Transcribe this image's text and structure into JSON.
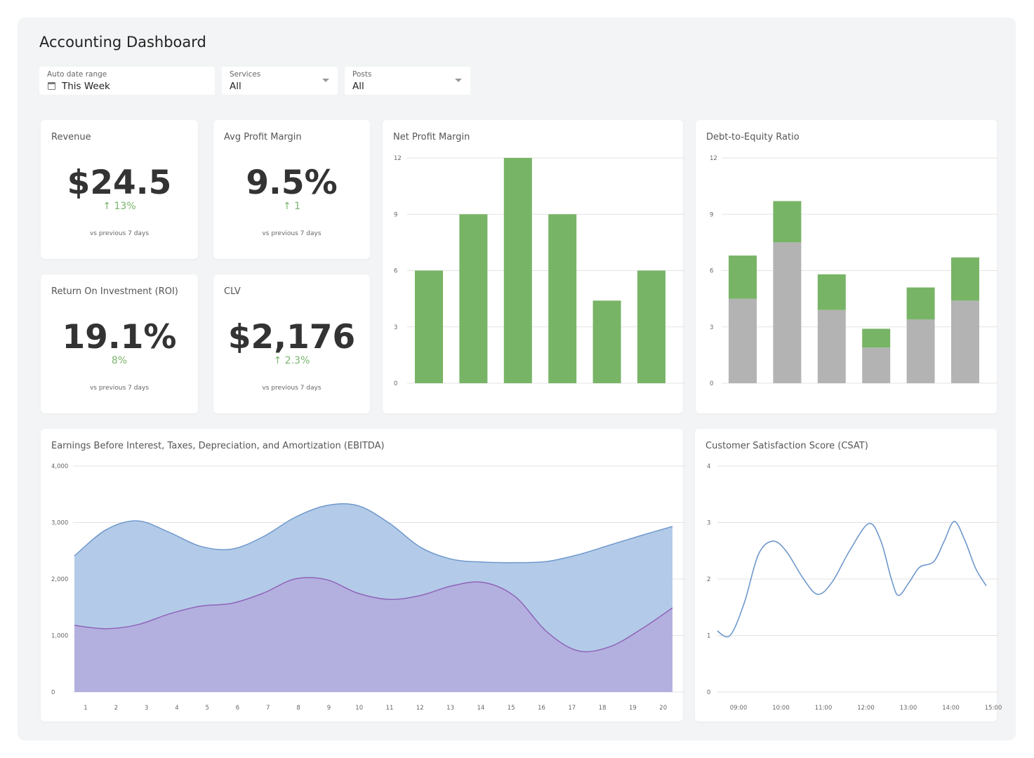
{
  "header": {
    "title": "Accounting Dashboard"
  },
  "filters": [
    {
      "label": "Auto date range",
      "value": "This Week",
      "icon": "calendar-icon"
    },
    {
      "label": "Services",
      "value": "All"
    },
    {
      "label": "Posts",
      "value": "All"
    }
  ],
  "kpis": [
    {
      "title": "Revenue",
      "value": "$24.5",
      "delta": "↑ 13%",
      "sub": "vs previous 7 days"
    },
    {
      "title": "Avg Profit Margin",
      "value": "9.5%",
      "delta": "↑ 1",
      "sub": "vs previous 7 days"
    },
    {
      "title": "Return On Investment (ROI)",
      "value": "19.1%",
      "delta": "8%",
      "sub": "vs previous 7 days"
    },
    {
      "title": "CLV",
      "value": "$2,176",
      "delta": "↑ 2.3%",
      "sub": "vs previous 7 days"
    }
  ],
  "colors": {
    "green": "#78b466",
    "gray": "#b3b3b3",
    "blue_fill": "#b3cbe8",
    "blue_line": "#6f98cc",
    "purple_fill": "#b3acde",
    "purple_line": "#9064b8",
    "csat_line": "#6f98cc"
  },
  "chart_data": [
    {
      "title": "Net Profit Margin",
      "type": "bar",
      "ylim": [
        0,
        12
      ],
      "yticks": [
        "0",
        "3",
        "6",
        "9",
        "12"
      ],
      "values": [
        6,
        9,
        12,
        9,
        4.4,
        6
      ]
    },
    {
      "title": "Debt-to-Equity Ratio",
      "type": "bar",
      "stacked": true,
      "ylim": [
        0,
        12
      ],
      "yticks": [
        "0",
        "3",
        "6",
        "9",
        "12"
      ],
      "series": [
        {
          "values": [
            4.5,
            7.5,
            3.9,
            1.9,
            3.4,
            4.4
          ]
        },
        {
          "values": [
            2.3,
            2.2,
            1.9,
            1.0,
            1.7,
            2.3
          ]
        }
      ]
    },
    {
      "title": "Earnings Before Interest, Taxes, Depreciation, and Amortization (EBITDA)",
      "type": "area",
      "ylim": [
        0,
        4000
      ],
      "yticks": [
        "0",
        "1,000",
        "2,000",
        "3,000",
        "4,000"
      ],
      "x": [
        "1",
        "2",
        "3",
        "4",
        "5",
        "6",
        "7",
        "8",
        "9",
        "10",
        "11",
        "12",
        "13",
        "14",
        "15",
        "16",
        "17",
        "18",
        "19",
        "20"
      ],
      "series": [
        {
          "values": [
            2410,
            2870,
            3030,
            2830,
            2580,
            2530,
            2750,
            3090,
            3300,
            3300,
            2990,
            2560,
            2350,
            2300,
            2290,
            2310,
            2430,
            2600,
            2770,
            2930
          ]
        },
        {
          "values": [
            1180,
            1120,
            1190,
            1380,
            1520,
            1570,
            1750,
            2000,
            1990,
            1750,
            1640,
            1710,
            1880,
            1940,
            1690,
            1070,
            730,
            800,
            1110,
            1490
          ]
        }
      ]
    },
    {
      "title": "Customer Satisfaction Score (CSAT)",
      "type": "line",
      "ylim": [
        0,
        4
      ],
      "yticks": [
        "0",
        "1",
        "2",
        "3",
        "4"
      ],
      "xticks": [
        "09:00",
        "10:00",
        "11:00",
        "12:00",
        "13:00",
        "14:00",
        "15:00"
      ],
      "x": [
        "08:30",
        "08:48",
        "09:08",
        "09:28",
        "09:48",
        "10:07",
        "10:32",
        "10:52",
        "11:12",
        "11:37",
        "12:04",
        "12:21",
        "12:36",
        "12:46",
        "13:01",
        "13:16",
        "13:36",
        "13:51",
        "14:05",
        "14:20",
        "14:35",
        "14:50"
      ],
      "values": [
        1.08,
        1.0,
        1.57,
        2.43,
        2.67,
        2.5,
        2.0,
        1.73,
        1.94,
        2.5,
        2.98,
        2.68,
        2.0,
        1.71,
        1.94,
        2.21,
        2.31,
        2.68,
        3.02,
        2.68,
        2.19,
        1.88
      ]
    }
  ]
}
